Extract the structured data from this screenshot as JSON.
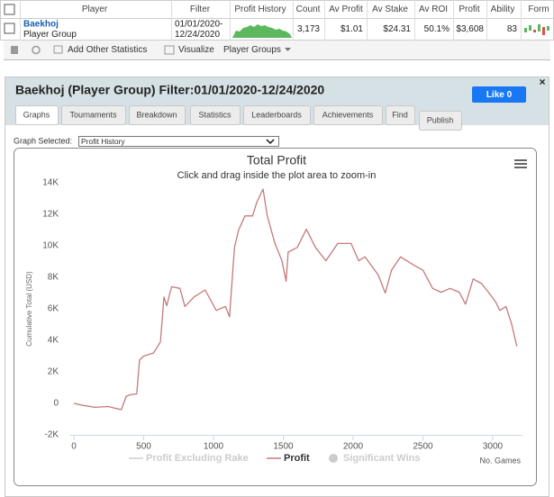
{
  "table": {
    "header": [
      "Player",
      "Filter",
      "Profit History",
      "Count",
      "Av Profit",
      "Av Stake",
      "Av ROI",
      "Profit",
      "Ability",
      "Form"
    ],
    "rows": [
      {
        "player": "Baekhoj",
        "group": "Player Group",
        "filter_start": "01/01/2020-",
        "filter_end": "12/24/2020",
        "count": "3,173",
        "av_profit": "$1.01",
        "av_stake": "$24.31",
        "av_roi": "50.1%",
        "profit": "$3,608",
        "ability": "83"
      }
    ]
  },
  "toolbar": [
    "Add Other Statistics",
    "Visualize",
    "Player Groups"
  ],
  "dialog": {
    "title": "Baekhoj (Player Group) Filter:01/01/2020-12/24/2020",
    "like_button": "Like 0",
    "tabs": [
      "Graphs",
      "Tournaments",
      "Breakdown",
      "Statistics",
      "Leaderboards",
      "Achievements",
      "Find",
      "Publish"
    ],
    "graph_selected_label": "Graph Selected:",
    "graph_selected": "Profit History"
  },
  "chart_data": {
    "type": "line",
    "title": "Total Profit",
    "subtitle": "Click and drag inside the plot area to zoom-in",
    "y_label": "Cumulative Total (USD)",
    "x_label": "No. Games",
    "x": [
      0,
      50,
      150,
      245,
      340,
      375,
      405,
      450,
      470,
      500,
      570,
      620,
      645,
      665,
      700,
      760,
      795,
      860,
      940,
      1020,
      1085,
      1115,
      1150,
      1180,
      1225,
      1280,
      1310,
      1355,
      1385,
      1440,
      1490,
      1520,
      1535,
      1600,
      1665,
      1730,
      1805,
      1890,
      1985,
      2040,
      2085,
      2180,
      2230,
      2275,
      2340,
      2440,
      2500,
      2570,
      2630,
      2695,
      2760,
      2805,
      2860,
      2920,
      2970,
      3020,
      3050,
      3095,
      3135,
      3173
    ],
    "series": [
      {
        "name": "Profit Excluding Rake",
        "color": "#cccccc",
        "symbol": "line",
        "visible": false
      },
      {
        "name": "Profit",
        "color": "#c47a7a",
        "symbol": "line",
        "visible": true,
        "values": [
          0,
          -100,
          -250,
          -200,
          -400,
          450,
          550,
          600,
          2750,
          3000,
          3200,
          3900,
          6750,
          6200,
          7400,
          7300,
          6150,
          6750,
          7200,
          5900,
          6150,
          5500,
          9900,
          11000,
          11900,
          11900,
          12750,
          13600,
          11900,
          10150,
          9050,
          7750,
          9600,
          9900,
          11050,
          9900,
          9050,
          10150,
          10150,
          9050,
          9300,
          8150,
          7000,
          8450,
          9300,
          8750,
          8450,
          7300,
          7050,
          7300,
          7050,
          6300,
          7900,
          7600,
          7050,
          6450,
          5900,
          6150,
          5050,
          3608
        ]
      },
      {
        "name": "Significant Wins",
        "color": "#cccccc",
        "symbol": "circle",
        "visible": false
      }
    ],
    "xlim": [
      0,
      3200
    ],
    "ylim": [
      -2000,
      14000
    ],
    "xticks": [
      0,
      500,
      1000,
      1500,
      2000,
      2500,
      3000
    ],
    "yticks": [
      {
        "value": -2000,
        "label": "-2K"
      },
      0,
      {
        "value": 2000,
        "label": "2K"
      },
      {
        "value": 4000,
        "label": "4K"
      },
      {
        "value": 6000,
        "label": "6K"
      },
      {
        "value": 8000,
        "label": "8K"
      },
      {
        "value": 10000,
        "label": "10K"
      },
      {
        "value": 12000,
        "label": "12K"
      },
      {
        "value": 14000,
        "label": "14K"
      }
    ],
    "grid": false
  }
}
